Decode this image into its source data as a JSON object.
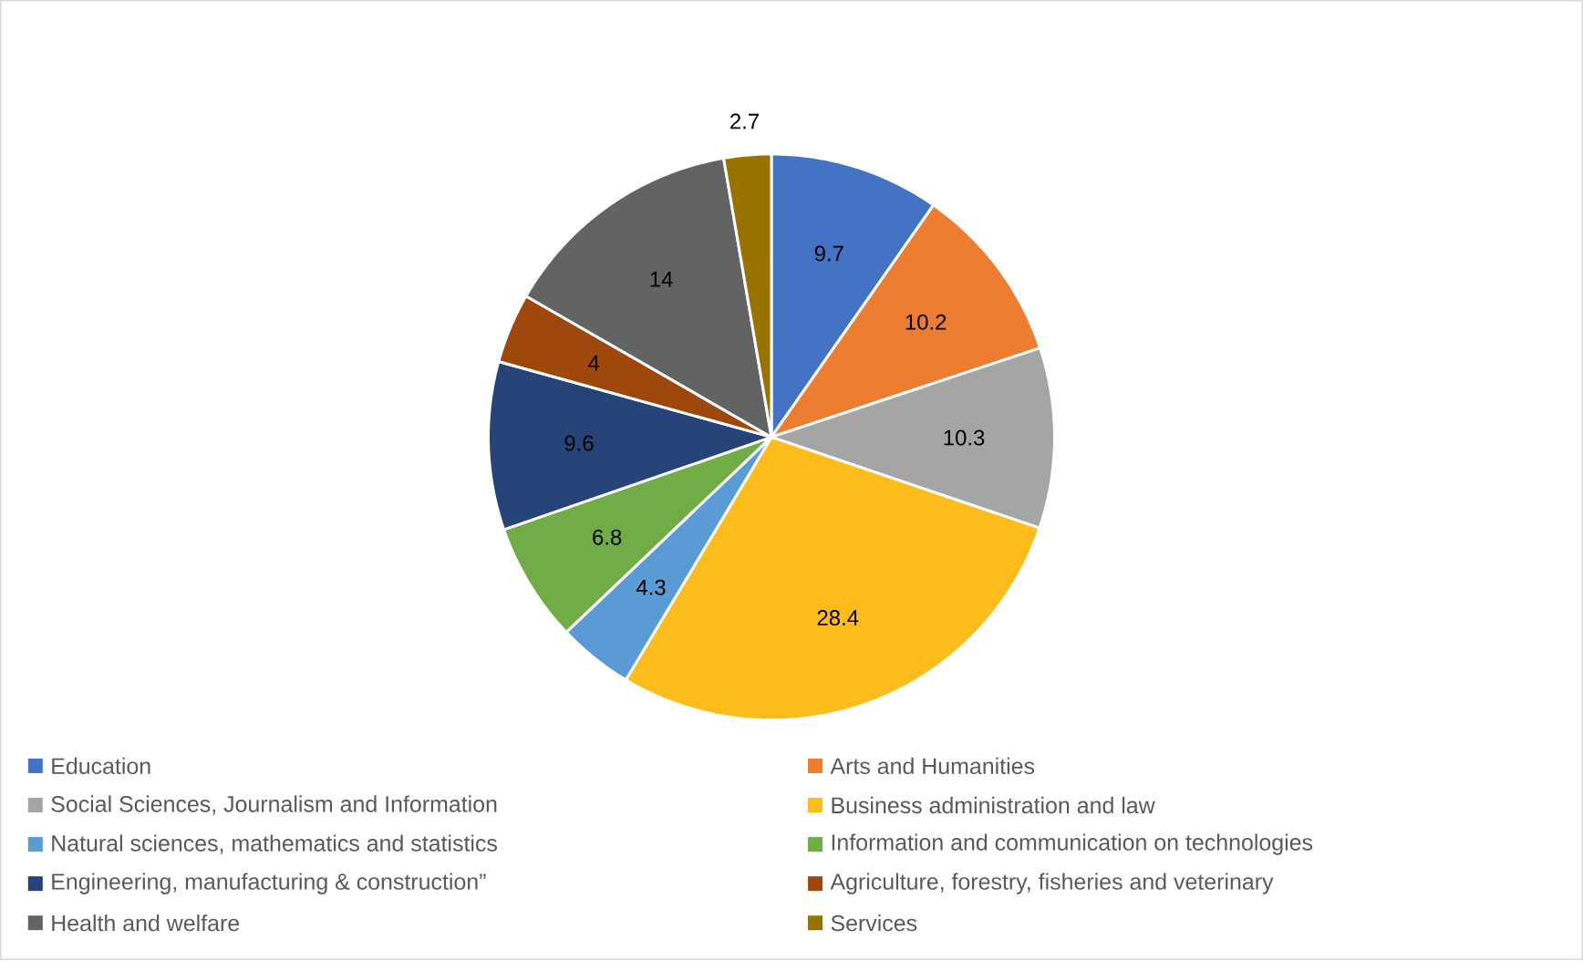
{
  "chart_data": {
    "type": "pie",
    "categories": [
      "Education",
      "Arts and Humanities",
      "Social Sciences, Journalism and Information",
      "Business administration and law",
      "Natural sciences, mathematics and statistics",
      "Information and communication on technologies",
      "Engineering, manufacturing & construction”",
      "Agriculture, forestry, fisheries and veterinary",
      "Health and welfare",
      "Services"
    ],
    "values": [
      9.7,
      10.2,
      10.3,
      28.4,
      4.3,
      6.8,
      9.6,
      4,
      14,
      2.7
    ],
    "colors": [
      "#4472c4",
      "#ed7d31",
      "#a5a5a5",
      "#fbbc1c",
      "#5b9bd5",
      "#70ad47",
      "#264478",
      "#9e480e",
      "#636363",
      "#997300"
    ],
    "data_labels": true,
    "legend": "bottom"
  }
}
